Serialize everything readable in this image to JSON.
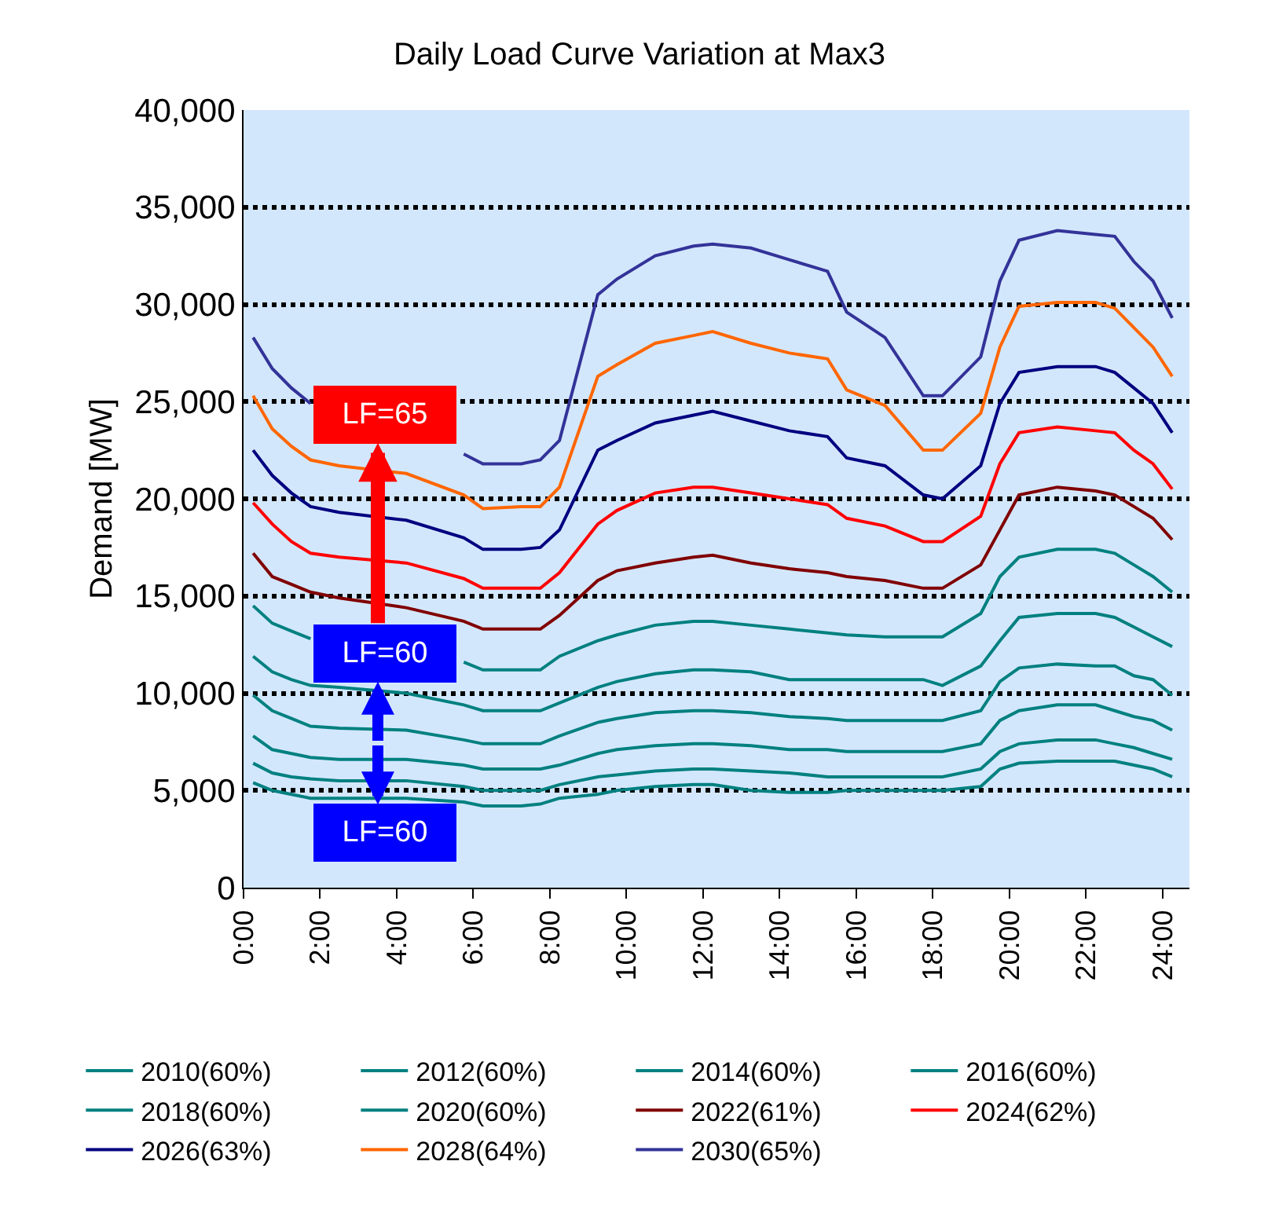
{
  "chart_data": {
    "type": "line",
    "title": "Daily Load Curve Variation at Max3",
    "ylabel": "Demand [MW]",
    "x": [
      0.25,
      0.75,
      1.25,
      1.75,
      2.5,
      4.25,
      5.75,
      6.25,
      7.25,
      7.75,
      8.25,
      9.25,
      9.75,
      10.75,
      11.75,
      12.25,
      13.25,
      14.25,
      15.25,
      15.75,
      16.75,
      17.75,
      18.25,
      19.25,
      19.75,
      20.25,
      21.25,
      22.25,
      22.75,
      23.25,
      23.75,
      24.25
    ],
    "xlim": [
      0,
      24.7
    ],
    "xticks": [
      {
        "value": 0,
        "label": "0:00"
      },
      {
        "value": 2,
        "label": "2:00"
      },
      {
        "value": 4,
        "label": "4:00"
      },
      {
        "value": 6,
        "label": "6:00"
      },
      {
        "value": 8,
        "label": "8:00"
      },
      {
        "value": 10,
        "label": "10:00"
      },
      {
        "value": 12,
        "label": "12:00"
      },
      {
        "value": 14,
        "label": "14:00"
      },
      {
        "value": 16,
        "label": "16:00"
      },
      {
        "value": 18,
        "label": "18:00"
      },
      {
        "value": 20,
        "label": "20:00"
      },
      {
        "value": 22,
        "label": "22:00"
      },
      {
        "value": 24,
        "label": "24:00"
      }
    ],
    "ylim": [
      0,
      40000
    ],
    "yticks": [
      0,
      {
        "value": 5000,
        "label": "5,000"
      },
      {
        "value": 10000,
        "label": "10,000"
      },
      {
        "value": 15000,
        "label": "15,000"
      },
      {
        "value": 20000,
        "label": "20,000"
      },
      {
        "value": 25000,
        "label": "25,000"
      },
      {
        "value": 30000,
        "label": "30,000"
      },
      {
        "value": 35000,
        "label": "35,000"
      },
      {
        "value": 40000,
        "label": "40,000"
      }
    ],
    "grid": "y",
    "legend": "bottom",
    "marker": "none",
    "line_style": "solid",
    "annotations": [
      "LF=65",
      "LF=60",
      "LF=60"
    ],
    "series": [
      {
        "name": "2010(60%)",
        "color": "#008080",
        "values": [
          5400,
          5000,
          4800,
          4600,
          4600,
          4600,
          4400,
          4200,
          4200,
          4300,
          4600,
          4800,
          5000,
          5200,
          5300,
          5300,
          5000,
          4900,
          4900,
          5000,
          5000,
          5000,
          5000,
          5200,
          6100,
          6400,
          6500,
          6500,
          6500,
          6300,
          6100,
          5700
        ]
      },
      {
        "name": "2012(60%)",
        "color": "#008080",
        "values": [
          6400,
          5900,
          5700,
          5600,
          5500,
          5500,
          5200,
          5000,
          5000,
          5000,
          5300,
          5700,
          5800,
          6000,
          6100,
          6100,
          6000,
          5900,
          5700,
          5700,
          5700,
          5700,
          5700,
          6100,
          7000,
          7400,
          7600,
          7600,
          7400,
          7200,
          6900,
          6600
        ]
      },
      {
        "name": "2014(60%)",
        "color": "#008080",
        "values": [
          7800,
          7100,
          6900,
          6700,
          6600,
          6600,
          6300,
          6100,
          6100,
          6100,
          6300,
          6900,
          7100,
          7300,
          7400,
          7400,
          7300,
          7100,
          7100,
          7000,
          7000,
          7000,
          7000,
          7400,
          8600,
          9100,
          9400,
          9400,
          9100,
          8800,
          8600,
          8100
        ]
      },
      {
        "name": "2016(60%)",
        "color": "#008080",
        "values": [
          9900,
          9100,
          8700,
          8300,
          8200,
          8100,
          7600,
          7400,
          7400,
          7400,
          7800,
          8500,
          8700,
          9000,
          9100,
          9100,
          9000,
          8800,
          8700,
          8600,
          8600,
          8600,
          8600,
          9100,
          10600,
          11300,
          11500,
          11400,
          11400,
          10900,
          10700,
          9900
        ]
      },
      {
        "name": "2018(60%)",
        "color": "#008080",
        "values": [
          11900,
          11100,
          10700,
          10400,
          10300,
          10000,
          9400,
          9100,
          9100,
          9100,
          9500,
          10300,
          10600,
          11000,
          11200,
          11200,
          11100,
          10700,
          10700,
          10700,
          10700,
          10700,
          10400,
          11400,
          12700,
          13900,
          14100,
          14100,
          13900,
          13400,
          12900,
          12400
        ]
      },
      {
        "name": "2020(60%)",
        "color": "#008080",
        "values": [
          14500,
          13600,
          13200,
          12800,
          null,
          null,
          11600,
          11200,
          11200,
          11200,
          11900,
          12700,
          13000,
          13500,
          13700,
          13700,
          13500,
          13300,
          13100,
          13000,
          12900,
          12900,
          12900,
          14100,
          16000,
          17000,
          17400,
          17400,
          17200,
          16600,
          16000,
          15200
        ]
      },
      {
        "name": "2022(61%)",
        "color": "#800000",
        "values": [
          17200,
          16000,
          15600,
          15200,
          14900,
          14400,
          13700,
          13300,
          13300,
          13300,
          14000,
          15800,
          16300,
          16700,
          17000,
          17100,
          16700,
          16400,
          16200,
          16000,
          15800,
          15400,
          15400,
          16600,
          18400,
          20200,
          20600,
          20400,
          20200,
          19600,
          19000,
          17900
        ]
      },
      {
        "name": "2024(62%)",
        "color": "#ff0000",
        "values": [
          19800,
          18700,
          17800,
          17200,
          17000,
          16700,
          15900,
          15400,
          15400,
          15400,
          16200,
          18700,
          19400,
          20300,
          20600,
          20600,
          20300,
          20000,
          19700,
          19000,
          18600,
          17800,
          17800,
          19100,
          21800,
          23400,
          23700,
          23500,
          23400,
          22500,
          21800,
          20500
        ]
      },
      {
        "name": "2026(63%)",
        "color": "#000080",
        "values": [
          22500,
          21200,
          20300,
          19600,
          19300,
          18900,
          18000,
          17400,
          17400,
          17500,
          18400,
          22500,
          23000,
          23900,
          24300,
          24500,
          24000,
          23500,
          23200,
          22100,
          21700,
          20200,
          20000,
          21700,
          24900,
          26500,
          26800,
          26800,
          26500,
          25700,
          24900,
          23400
        ]
      },
      {
        "name": "2028(64%)",
        "color": "#ff6600",
        "values": [
          25300,
          23600,
          22700,
          22000,
          21700,
          21300,
          20200,
          19500,
          19600,
          19600,
          20600,
          26300,
          26900,
          28000,
          28400,
          28600,
          28000,
          27500,
          27200,
          25600,
          24800,
          22500,
          22500,
          24400,
          27800,
          29900,
          30100,
          30100,
          29800,
          28800,
          27800,
          26300
        ]
      },
      {
        "name": "2030(65%)",
        "color": "#333399",
        "values": [
          28300,
          26700,
          25700,
          24900,
          null,
          null,
          22300,
          21800,
          21800,
          22000,
          23000,
          30500,
          31300,
          32500,
          33000,
          33100,
          32900,
          32300,
          31700,
          29600,
          28300,
          25300,
          25300,
          27300,
          31200,
          33300,
          33800,
          33600,
          33500,
          32200,
          31200,
          29300
        ]
      }
    ]
  }
}
